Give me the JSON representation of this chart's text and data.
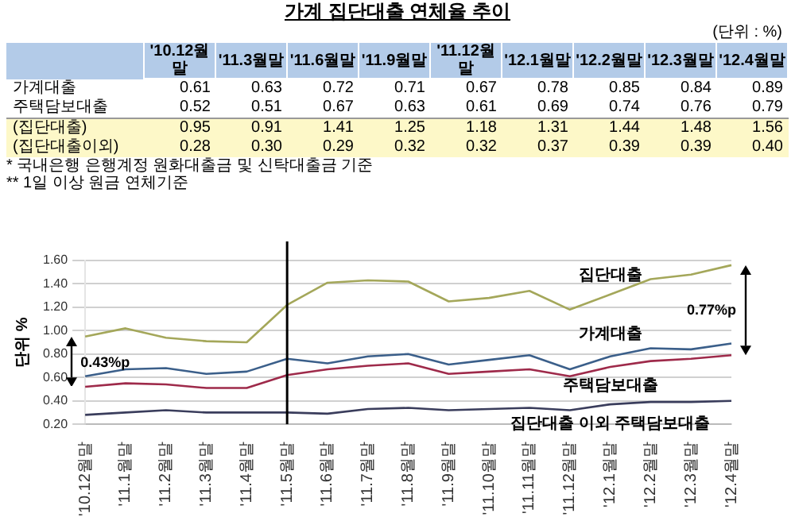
{
  "chart_data": [
    {
      "type": "heatmap",
      "data_labels": true,
      "title": "가계 집단대출 연체율 추이",
      "subtitle": "(단위 : %)",
      "categories": [
        "'10.12월말",
        "'11.3월말",
        "'11.6월말",
        "'11.9월말",
        "'11.12월말",
        "'12.1월말",
        "'12.2월말",
        "'12.3월말",
        "'12.4월말"
      ],
      "y_categories": [
        "가계대출",
        "주택담보대출",
        "(집단대출)",
        "(집단대출이외)"
      ],
      "cells": [
        [
          0.61,
          0.63,
          0.72,
          0.71,
          0.67,
          0.78,
          0.85,
          0.84,
          0.89
        ],
        [
          0.52,
          0.51,
          0.67,
          0.63,
          0.61,
          0.69,
          0.74,
          0.76,
          0.79
        ],
        [
          0.95,
          0.91,
          1.41,
          1.25,
          1.18,
          1.31,
          1.44,
          1.48,
          1.56
        ],
        [
          0.28,
          0.3,
          0.29,
          0.32,
          0.32,
          0.37,
          0.39,
          0.39,
          0.4
        ]
      ],
      "cell_labels": [
        [
          "0.61",
          "0.63",
          "0.72",
          "0.71",
          "0.67",
          "0.78",
          "0.85",
          "0.84",
          "0.89"
        ],
        [
          "0.52",
          "0.51",
          "0.67",
          "0.63",
          "0.61",
          "0.69",
          "0.74",
          "0.76",
          "0.79"
        ],
        [
          "0.95",
          "0.91",
          "1.41",
          "1.25",
          "1.18",
          "1.31",
          "1.44",
          "1.48",
          "1.56"
        ],
        [
          "0.28",
          "0.30",
          "0.29",
          "0.32",
          "0.32",
          "0.37",
          "0.39",
          "0.39",
          "0.40"
        ]
      ],
      "annotations": [
        "* 국내은행 은행계정 원화대출금 및 신탁대출금 기준",
        "** 1일 이상 원금 연체기준"
      ]
    },
    {
      "type": "line",
      "ylabel": "단위 %",
      "categories": [
        "'10.12월말",
        "'11.1월말",
        "'11.2월말",
        "'11.3월말",
        "'11.4월말",
        "'11.5월말",
        "'11.6월말",
        "'11.7월말",
        "'11.8월말",
        "'11.9월말",
        "'11.10월말",
        "'11.11월말",
        "'11.12월말",
        "'12.1월말",
        "'12.2월말",
        "'12.3월말",
        "'12.4월말"
      ],
      "series": [
        {
          "name": "가계대출",
          "color": "#3b5f8a",
          "values": [
            0.61,
            0.67,
            0.68,
            0.63,
            0.65,
            0.76,
            0.72,
            0.78,
            0.8,
            0.71,
            0.75,
            0.79,
            0.67,
            0.78,
            0.85,
            0.84,
            0.89
          ]
        },
        {
          "name": "주택담보대출",
          "color": "#9e2a4a",
          "values": [
            0.52,
            0.55,
            0.54,
            0.51,
            0.51,
            0.62,
            0.67,
            0.7,
            0.72,
            0.63,
            0.65,
            0.67,
            0.61,
            0.69,
            0.74,
            0.76,
            0.79
          ]
        },
        {
          "name": "집단대출",
          "color": "#a4a75a",
          "values": [
            0.95,
            1.02,
            0.94,
            0.91,
            0.9,
            1.22,
            1.41,
            1.43,
            1.42,
            1.25,
            1.28,
            1.34,
            1.18,
            1.31,
            1.44,
            1.48,
            1.56
          ]
        },
        {
          "name": "집단대출 이외 주택담보대출",
          "color": "#3a3d5c",
          "values": [
            0.28,
            0.3,
            0.32,
            0.3,
            0.3,
            0.3,
            0.29,
            0.33,
            0.34,
            0.32,
            0.33,
            0.34,
            0.32,
            0.37,
            0.39,
            0.39,
            0.4
          ]
        }
      ],
      "ylim": [
        0.2,
        1.6
      ],
      "yticks": [
        {
          "value": 0.2,
          "label": "0.20"
        },
        {
          "value": 0.4,
          "label": "0.40"
        },
        {
          "value": 0.6,
          "label": "0.60"
        },
        {
          "value": 0.8,
          "label": "0.80"
        },
        {
          "value": 1.0,
          "label": "1.00"
        },
        {
          "value": 1.2,
          "label": "1.20"
        },
        {
          "value": 1.4,
          "label": "1.40"
        },
        {
          "value": 1.6,
          "label": "1.60"
        }
      ],
      "grid": "y",
      "legend": false,
      "marker": "none",
      "line_style": "solid",
      "ref_lines": [
        {
          "axis": "x",
          "value": "'11.5월말",
          "color": "#000000"
        }
      ],
      "annotations": [
        "0.43%p",
        "0.77%p"
      ]
    }
  ]
}
